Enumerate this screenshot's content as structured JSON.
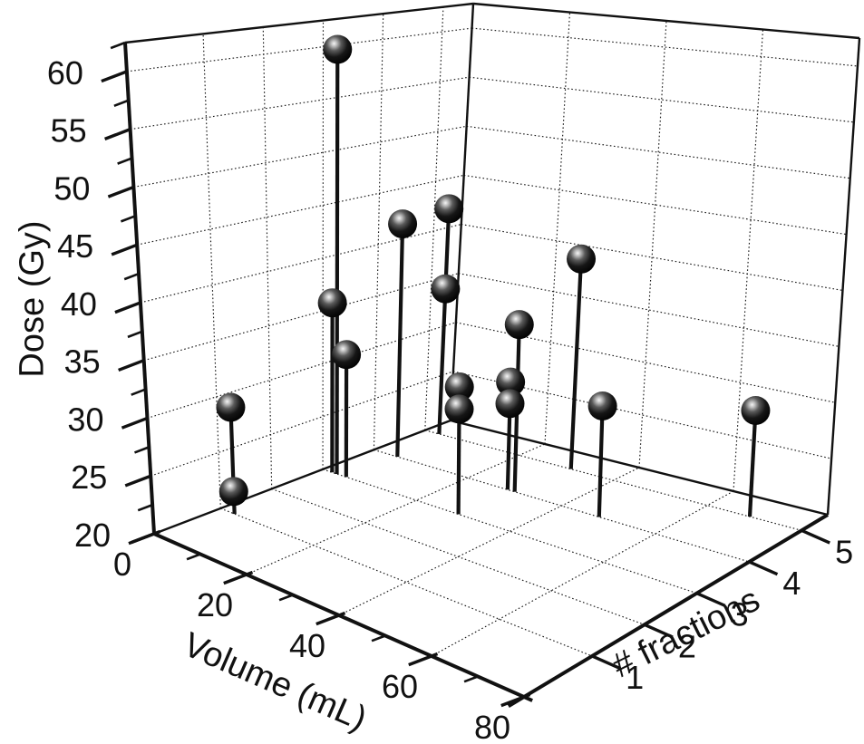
{
  "chart_data": {
    "type": "scatter",
    "subtype": "3d-stem-plot",
    "title": "",
    "legend": null,
    "grid": true,
    "axes": {
      "x": {
        "label": "Volume (mL)",
        "min": 0,
        "max": 80,
        "major_ticks": [
          0,
          20,
          40,
          60,
          80
        ],
        "tick_labels": [
          "0",
          "20",
          "40",
          "60",
          "80"
        ],
        "minor_ticks": [
          10,
          30,
          50,
          70
        ]
      },
      "y": {
        "label": "# fractions",
        "min": -0.3,
        "max": 5.5,
        "major_ticks": [
          1,
          2,
          3,
          4,
          5
        ],
        "tick_labels": [
          "1",
          "2",
          "3",
          "4",
          "5"
        ],
        "minor_ticks": []
      },
      "z": {
        "label": "Dose (Gy)",
        "min": 20,
        "max": 62.5,
        "major_ticks": [
          20,
          25,
          30,
          35,
          40,
          45,
          50,
          55,
          60
        ],
        "tick_labels": [
          "20",
          "25",
          "30",
          "35",
          "40",
          "45",
          "50",
          "55",
          "60"
        ],
        "minor_ticks": [
          22.5,
          27.5,
          32.5,
          37.5,
          42.5,
          47.5,
          52.5,
          57.5,
          62.5
        ]
      }
    },
    "gridlines": {
      "dose_lines": [
        25,
        30,
        35,
        40,
        45,
        50,
        55,
        60
      ],
      "volume_lines": [
        20,
        40,
        60
      ],
      "fraction_lines": [
        1,
        2,
        3,
        4,
        5
      ]
    },
    "points": [
      {
        "volume": 3,
        "fractions": 3,
        "dose": 60
      },
      {
        "volume": 2,
        "fractions": 3,
        "dose": 36
      },
      {
        "volume": 5,
        "fractions": 3,
        "dose": 31.5
      },
      {
        "volume": 5,
        "fractions": 4,
        "dose": 42.5
      },
      {
        "volume": 3,
        "fractions": 5,
        "dose": 42.5
      },
      {
        "volume": 3,
        "fractions": 5,
        "dose": 34.5
      },
      {
        "volume": 31,
        "fractions": 5,
        "dose": 40
      },
      {
        "volume": 30,
        "fractions": 4,
        "dose": 35.5
      },
      {
        "volume": 28.5,
        "fractions": 4,
        "dose": 30
      },
      {
        "volume": 28.5,
        "fractions": 4,
        "dose": 28
      },
      {
        "volume": 29,
        "fractions": 3,
        "dose": 31.5
      },
      {
        "volume": 29,
        "fractions": 3,
        "dose": 29.5
      },
      {
        "volume": 48,
        "fractions": 4,
        "dose": 30
      },
      {
        "volume": 69,
        "fractions": 5,
        "dose": 29.5
      },
      {
        "volume": 3,
        "fractions": 1,
        "dose": 29.5
      },
      {
        "volume": 3,
        "fractions": 1,
        "dose": 22
      }
    ],
    "style": {
      "background": "#ffffff",
      "sphere_color": "#000000",
      "sphere_highlight": "#f5f5f5",
      "stem_color": "#111111",
      "grid_color": "#1a1a1a",
      "axis_color": "#111111",
      "text_color": "#111111"
    }
  }
}
